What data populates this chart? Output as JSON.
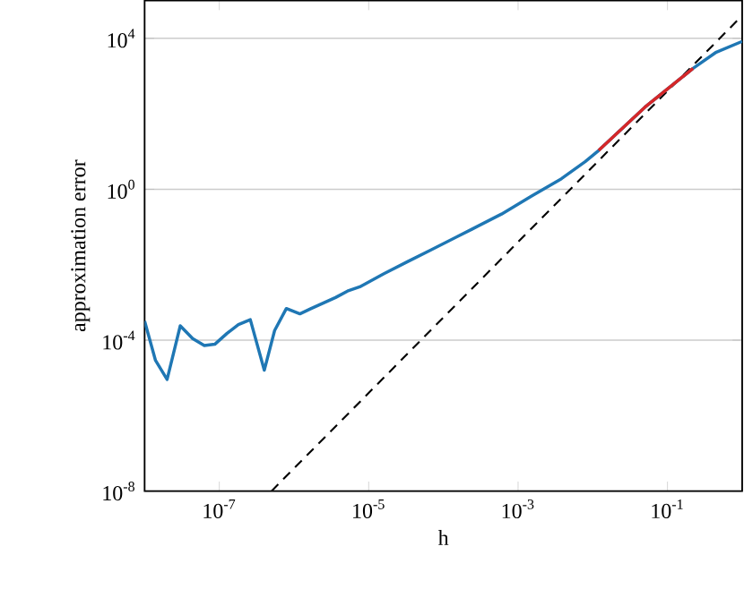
{
  "chart_data": {
    "type": "line",
    "xlabel": "h",
    "ylabel": "approximation error",
    "log": "xy",
    "grid": "y",
    "marker": "none",
    "xlim": [
      1e-08,
      1
    ],
    "ylim": [
      1e-08,
      100000.0
    ],
    "xticks": [
      {
        "value": 1e-07,
        "label": "10$^{-7}$"
      },
      {
        "value": 1e-05,
        "label": "10$^{-5}$"
      },
      {
        "value": 0.001,
        "label": "10$^{-3}$"
      },
      {
        "value": 0.1,
        "label": "10$^{-1}$"
      }
    ],
    "yticks": [
      {
        "value": 1e-08,
        "label": "10$^{-8}$"
      },
      {
        "value": 0.0001,
        "label": "10$^{-4}$"
      },
      {
        "value": 1,
        "label": "10$^{0}$"
      },
      {
        "value": 10000,
        "label": "10$^{4}$"
      }
    ],
    "series": [
      {
        "color": "#000000",
        "line_style": "dashed",
        "x": [
          5e-07,
          1
        ],
        "values": [
          1e-08,
          40000
        ]
      },
      {
        "color": "#1f77b4",
        "line_style": "solid",
        "x": [
          1e-08,
          1.4e-08,
          2e-08,
          3e-08,
          4.4e-08,
          6.3e-08,
          8.7e-08,
          1.26e-07,
          1.8e-07,
          2.6e-07,
          4e-07,
          5.5e-07,
          7.9e-07,
          1.2e-06,
          1.7e-06,
          3.6e-06,
          5.2e-06,
          7.6e-06,
          1.6e-05,
          3.3e-05,
          6.9e-05,
          0.00024,
          0.0006,
          0.0015,
          0.0038,
          0.0079,
          0.012,
          0.05,
          0.22,
          0.45,
          1
        ],
        "values": [
          0.00032,
          2.9e-05,
          9.1e-06,
          0.00024,
          0.00011,
          7.2e-05,
          7.8e-05,
          0.00015,
          0.00026,
          0.00035,
          1.6e-05,
          0.00018,
          0.00069,
          0.0005,
          0.00069,
          0.00135,
          0.002,
          0.0026,
          0.0058,
          0.012,
          0.025,
          0.087,
          0.22,
          0.65,
          1.9,
          5.4,
          10.7,
          150,
          1600,
          4300,
          8300
        ]
      },
      {
        "color": "#d62728",
        "line_style": "solid",
        "x": [
          0.012,
          0.05,
          0.22
        ],
        "values": [
          10.7,
          150,
          1600
        ]
      }
    ]
  }
}
